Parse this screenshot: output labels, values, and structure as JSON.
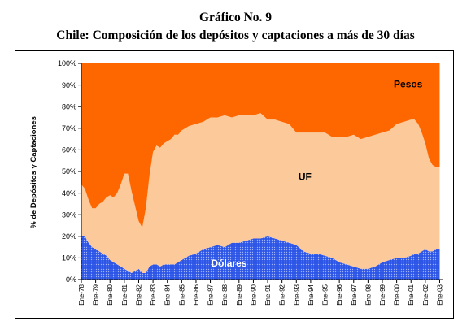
{
  "header": {
    "title": "Gráfico No. 9",
    "subtitle": "Chile: Composición de los depósitos y captaciones a más de 30 días"
  },
  "chart_data": {
    "type": "area",
    "stacked": true,
    "normalized": true,
    "ylabel": "% de Depósitos y Captaciones",
    "ylim": [
      0,
      100
    ],
    "yticks": [
      "0%",
      "10%",
      "20%",
      "30%",
      "40%",
      "50%",
      "60%",
      "70%",
      "80%",
      "90%",
      "100%"
    ],
    "x_tick_labels": [
      "Ene-78",
      "Ene-79",
      "Ene-80",
      "Ene-81",
      "Ene-82",
      "Ene-83",
      "Ene-84",
      "Ene-85",
      "Ene-86",
      "Ene-87",
      "Ene-88",
      "Ene-89",
      "Ene-90",
      "Ene-91",
      "Ene-92",
      "Ene-93",
      "Ene-94",
      "Ene-95",
      "Ene-96",
      "Ene-97",
      "Ene-98",
      "Ene-99",
      "Ene-00",
      "Ene-01",
      "Ene-02",
      "Ene-03"
    ],
    "x": [
      1978.0,
      1978.25,
      1978.5,
      1978.75,
      1979.0,
      1979.25,
      1979.5,
      1979.75,
      1980.0,
      1980.25,
      1980.5,
      1980.75,
      1981.0,
      1981.25,
      1981.5,
      1981.75,
      1982.0,
      1982.25,
      1982.5,
      1982.75,
      1983.0,
      1983.25,
      1983.5,
      1983.75,
      1984.0,
      1984.25,
      1984.5,
      1984.75,
      1985.0,
      1985.5,
      1986.0,
      1986.5,
      1987.0,
      1987.5,
      1988.0,
      1988.5,
      1989.0,
      1989.5,
      1990.0,
      1990.5,
      1991.0,
      1991.5,
      1992.0,
      1992.5,
      1993.0,
      1993.5,
      1994.0,
      1994.5,
      1995.0,
      1995.5,
      1996.0,
      1996.5,
      1997.0,
      1997.5,
      1998.0,
      1998.5,
      1999.0,
      1999.5,
      2000.0,
      2000.5,
      2001.0,
      2001.25,
      2001.5,
      2001.75,
      2002.0,
      2002.25,
      2002.5,
      2002.75,
      2003.0
    ],
    "series": [
      {
        "name": "Dólares",
        "color": "#2d55e6",
        "values": [
          20,
          20,
          17,
          15,
          14,
          13,
          12,
          11,
          9,
          8,
          7,
          6,
          5,
          4,
          3,
          4,
          5,
          3,
          3,
          6,
          7,
          7,
          6,
          7,
          7,
          7,
          7,
          8,
          9,
          11,
          12,
          14,
          15,
          16,
          15,
          17,
          17,
          18,
          19,
          19,
          20,
          19,
          18,
          17,
          16,
          13,
          12,
          12,
          11,
          10,
          8,
          7,
          6,
          5,
          5,
          6,
          8,
          9,
          10,
          10,
          11,
          12,
          12,
          13,
          14,
          13,
          13,
          14,
          14
        ]
      },
      {
        "name": "UF",
        "color": "#fcc99b",
        "values": [
          24,
          22,
          20,
          18,
          19,
          22,
          24,
          27,
          30,
          30,
          33,
          38,
          44,
          45,
          38,
          30,
          22,
          21,
          30,
          42,
          52,
          55,
          55,
          56,
          57,
          58,
          60,
          59,
          60,
          60,
          60,
          59,
          60,
          59,
          61,
          58,
          59,
          58,
          57,
          58,
          54,
          55,
          55,
          55,
          52,
          55,
          56,
          56,
          57,
          56,
          58,
          59,
          61,
          60,
          61,
          61,
          60,
          60,
          62,
          63,
          63,
          62,
          60,
          55,
          49,
          43,
          40,
          38,
          38
        ]
      },
      {
        "name": "Pesos",
        "color": "#fe6600",
        "values": [
          56,
          58,
          63,
          67,
          67,
          65,
          64,
          62,
          61,
          62,
          60,
          56,
          51,
          51,
          59,
          66,
          73,
          76,
          67,
          52,
          41,
          38,
          39,
          37,
          36,
          35,
          33,
          33,
          31,
          29,
          28,
          27,
          25,
          25,
          24,
          25,
          24,
          24,
          24,
          23,
          26,
          26,
          27,
          28,
          32,
          32,
          32,
          32,
          32,
          34,
          34,
          34,
          33,
          35,
          34,
          33,
          32,
          31,
          28,
          27,
          26,
          26,
          28,
          32,
          37,
          44,
          47,
          48,
          48
        ]
      }
    ],
    "annotations": [
      {
        "text": "Pesos",
        "x": 2000.8,
        "y": 89
      },
      {
        "text": "UF",
        "x": 1993.6,
        "y": 46
      },
      {
        "text": "Dólares",
        "x": 1988.3,
        "y": 6
      }
    ]
  }
}
